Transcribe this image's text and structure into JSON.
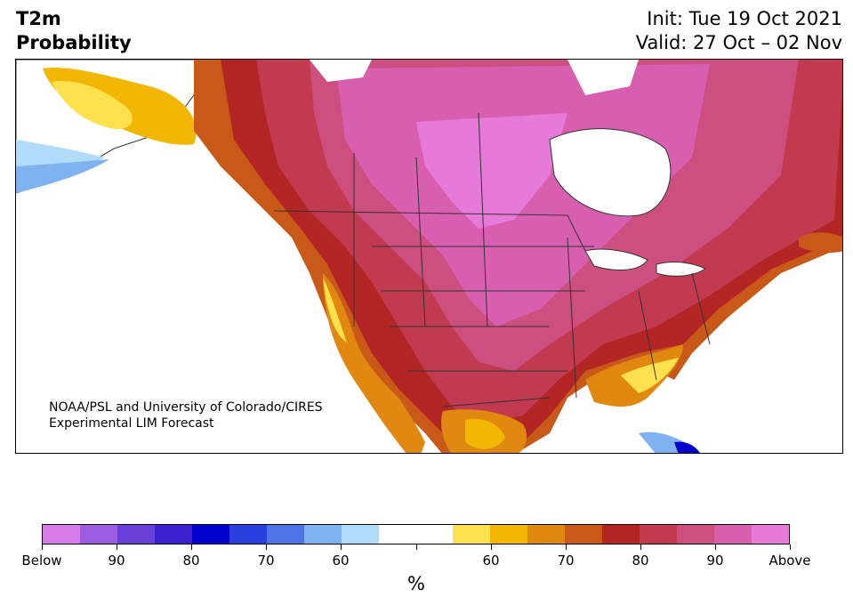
{
  "header": {
    "variable": "T2m",
    "metric": "Probability",
    "init": "Init: Tue 19 Oct 2021",
    "valid": "Valid: 27 Oct – 02 Nov"
  },
  "credit": {
    "line1": "NOAA/PSL and University of Colorado/CIRES",
    "line2": "Experimental LIM Forecast"
  },
  "colorbar": {
    "colors": [
      "#d77ce8",
      "#9b5ce0",
      "#6a40d8",
      "#3b22d0",
      "#0000cc",
      "#2a3fe0",
      "#4f74e8",
      "#7fb2f0",
      "#b0dcfa",
      "#ffffff",
      "#ffffff",
      "#ffe14e",
      "#f2b705",
      "#e08810",
      "#c85918",
      "#b32424",
      "#c23a4f",
      "#cc4f7f",
      "#d85fb0",
      "#e67ad8"
    ],
    "labels": [
      "Below",
      "90",
      "80",
      "70",
      "60",
      "",
      "60",
      "70",
      "80",
      "90",
      "Above"
    ],
    "unit": "%"
  }
}
